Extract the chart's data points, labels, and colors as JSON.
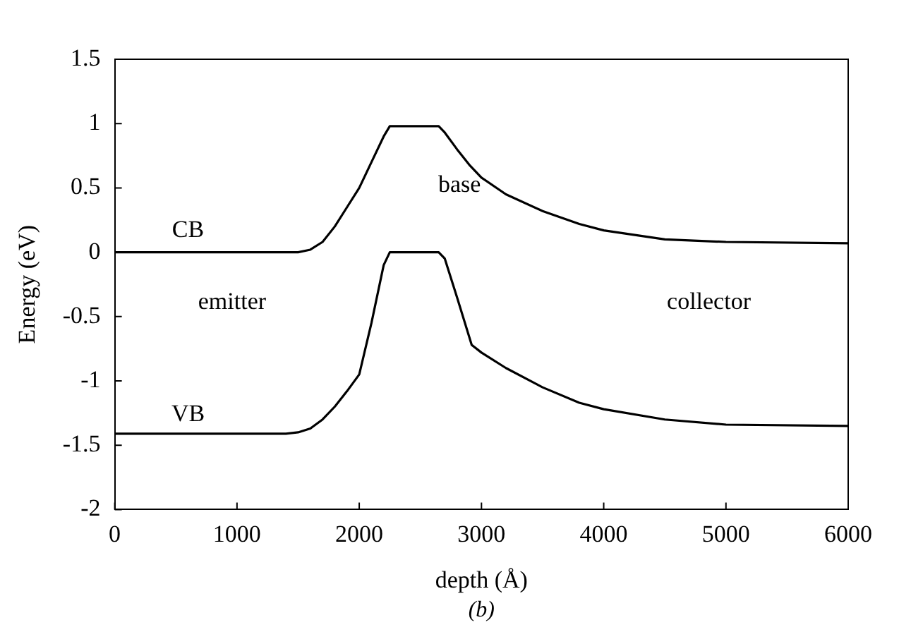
{
  "chart_data": {
    "type": "line",
    "xlabel": "depth (Å)",
    "ylabel": "Energy (eV)",
    "xlim": [
      0,
      6000
    ],
    "xticks": [
      0,
      1000,
      2000,
      3000,
      4000,
      5000,
      6000
    ],
    "ylim": [
      -2,
      1.5
    ],
    "yticks": [
      -2,
      -1.5,
      -1,
      -0.5,
      0,
      0.5,
      1,
      1.5
    ],
    "grid": false,
    "legend": false,
    "marker": "none",
    "line_style": "solid",
    "series": [
      {
        "color": "#000000",
        "x": [
          0,
          1500,
          1600,
          1700,
          1800,
          1900,
          2000,
          2100,
          2200,
          2250,
          2650,
          2700,
          2800,
          2900,
          3000,
          3200,
          3500,
          3800,
          4000,
          4500,
          5000,
          6000
        ],
        "values": [
          0,
          0,
          0.02,
          0.08,
          0.2,
          0.35,
          0.5,
          0.7,
          0.9,
          0.98,
          0.98,
          0.93,
          0.8,
          0.68,
          0.58,
          0.45,
          0.32,
          0.22,
          0.17,
          0.1,
          0.08,
          0.07
        ]
      },
      {
        "color": "#000000",
        "x": [
          0,
          1400,
          1500,
          1600,
          1700,
          1800,
          1900,
          2000,
          2100,
          2200,
          2250,
          2650,
          2700,
          2800,
          2920,
          3000,
          3200,
          3500,
          3800,
          4000,
          4500,
          5000,
          6000
        ],
        "values": [
          -1.41,
          -1.41,
          -1.4,
          -1.37,
          -1.3,
          -1.2,
          -1.08,
          -0.95,
          -0.55,
          -0.1,
          0,
          0,
          -0.05,
          -0.35,
          -0.72,
          -0.78,
          -0.9,
          -1.05,
          -1.17,
          -1.22,
          -1.3,
          -1.34,
          -1.35
        ]
      }
    ],
    "annotations": [
      "CB",
      "VB",
      "base",
      "emitter",
      "collector",
      "(b)"
    ]
  }
}
